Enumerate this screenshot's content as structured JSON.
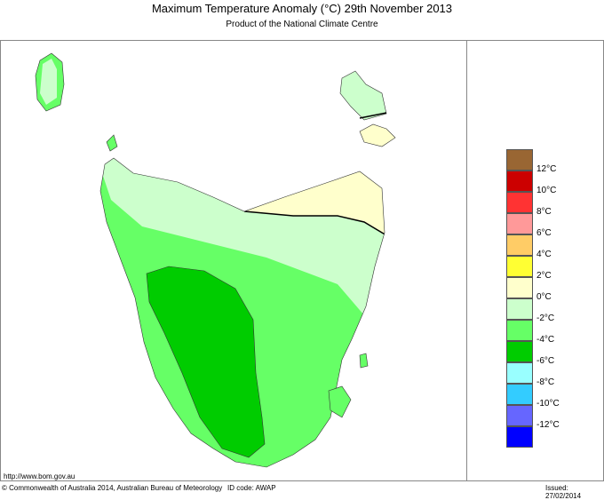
{
  "title": "Maximum Temperature Anomaly (°C)  29th November 2013",
  "subtitle": "Product of the National Climate Centre",
  "legend": {
    "colors": [
      "#996633",
      "#cc0000",
      "#ff3333",
      "#ff9999",
      "#ffcc66",
      "#ffff33",
      "#ffffcc",
      "#ccffcc",
      "#66ff66",
      "#00cc00",
      "#99ffff",
      "#33ccff",
      "#6666ff",
      "#0000ff"
    ],
    "labels": [
      "12°C",
      "10°C",
      "8°C",
      "6°C",
      "4°C",
      "2°C",
      "0°C",
      "-2°C",
      "-4°C",
      "-6°C",
      "-8°C",
      "-10°C",
      "-12°C"
    ]
  },
  "footer": {
    "url": "http://www.bom.gov.au",
    "copyright": "© Commonwealth of Australia 2014, Australian Bureau of Meteorology",
    "id_code": "ID code: AWAP",
    "issued": "Issued: 27/02/2014"
  }
}
